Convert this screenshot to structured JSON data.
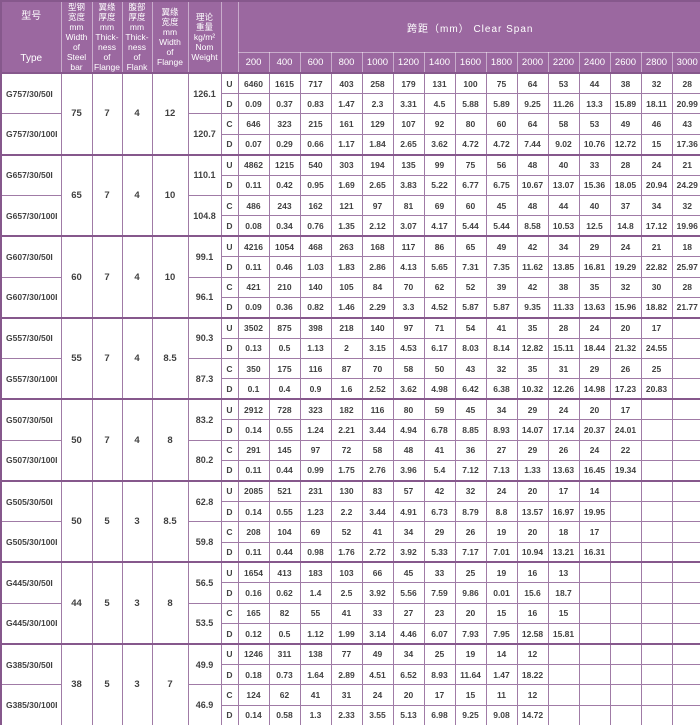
{
  "table": {
    "header": {
      "type_col": "型号\n\nType",
      "spec_cols": [
        {
          "id": "width-of-steel-bar",
          "text": "型钢\n宽度\nmm\nWidth\nof\nSteel\nbar"
        },
        {
          "id": "thickness-of-flange",
          "text": "翼缘\n厚度\nmm\nThick-\nness\nof\nFlange"
        },
        {
          "id": "thickness-of-flank",
          "text": "腹部\n厚度\nmm\nThick-\nness\nof\nFlank"
        },
        {
          "id": "width-of-flange",
          "text": "翼缘\n宽度\nmm\nWidth\nof\nFlange"
        },
        {
          "id": "nom-weight",
          "text": "理论\n重量\nkg/m²\nNom\nWeight"
        }
      ],
      "clear_span_title": "跨距（mm）  Clear Span",
      "spans": [
        "200",
        "400",
        "600",
        "800",
        "1000",
        "1200",
        "1400",
        "1600",
        "1800",
        "2000",
        "2200",
        "2400",
        "2600",
        "2800",
        "3000"
      ]
    },
    "groups": [
      {
        "types": [
          "G757/30/50I",
          "G757/30/100I"
        ],
        "width": "75",
        "flange_thickness": "7",
        "flank_thickness": "4",
        "flange_width": "12",
        "weights": [
          "126.1",
          "120.7"
        ],
        "rows": [
          {
            "label": "U",
            "values": [
              "6460",
              "1615",
              "717",
              "403",
              "258",
              "179",
              "131",
              "100",
              "75",
              "64",
              "53",
              "44",
              "38",
              "32",
              "28"
            ]
          },
          {
            "label": "D",
            "values": [
              "0.09",
              "0.37",
              "0.83",
              "1.47",
              "2.3",
              "3.31",
              "4.5",
              "5.88",
              "5.89",
              "9.25",
              "11.26",
              "13.3",
              "15.89",
              "18.11",
              "20.99"
            ]
          },
          {
            "label": "C",
            "values": [
              "646",
              "323",
              "215",
              "161",
              "129",
              "107",
              "92",
              "80",
              "60",
              "64",
              "58",
              "53",
              "49",
              "46",
              "43"
            ]
          },
          {
            "label": "D",
            "values": [
              "0.07",
              "0.29",
              "0.66",
              "1.17",
              "1.84",
              "2.65",
              "3.62",
              "4.72",
              "4.72",
              "7.44",
              "9.02",
              "10.76",
              "12.72",
              "15",
              "17.36"
            ]
          }
        ]
      },
      {
        "types": [
          "G657/30/50I",
          "G657/30/100I"
        ],
        "width": "65",
        "flange_thickness": "7",
        "flank_thickness": "4",
        "flange_width": "10",
        "weights": [
          "110.1",
          "104.8"
        ],
        "rows": [
          {
            "label": "U",
            "values": [
              "4862",
              "1215",
              "540",
              "303",
              "194",
              "135",
              "99",
              "75",
              "56",
              "48",
              "40",
              "33",
              "28",
              "24",
              "21"
            ]
          },
          {
            "label": "D",
            "values": [
              "0.11",
              "0.42",
              "0.95",
              "1.69",
              "2.65",
              "3.83",
              "5.22",
              "6.77",
              "6.75",
              "10.67",
              "13.07",
              "15.36",
              "18.05",
              "20.94",
              "24.29"
            ]
          },
          {
            "label": "C",
            "values": [
              "486",
              "243",
              "162",
              "121",
              "97",
              "81",
              "69",
              "60",
              "45",
              "48",
              "44",
              "40",
              "37",
              "34",
              "32"
            ]
          },
          {
            "label": "D",
            "values": [
              "0.08",
              "0.34",
              "0.76",
              "1.35",
              "2.12",
              "3.07",
              "4.17",
              "5.44",
              "5.44",
              "8.58",
              "10.53",
              "12.5",
              "14.8",
              "17.12",
              "19.96"
            ]
          }
        ]
      },
      {
        "types": [
          "G607/30/50I",
          "G607/30/100I"
        ],
        "width": "60",
        "flange_thickness": "7",
        "flank_thickness": "4",
        "flange_width": "10",
        "weights": [
          "99.1",
          "96.1"
        ],
        "rows": [
          {
            "label": "U",
            "values": [
              "4216",
              "1054",
              "468",
              "263",
              "168",
              "117",
              "86",
              "65",
              "49",
              "42",
              "34",
              "29",
              "24",
              "21",
              "18"
            ]
          },
          {
            "label": "D",
            "values": [
              "0.11",
              "0.46",
              "1.03",
              "1.83",
              "2.86",
              "4.13",
              "5.65",
              "7.31",
              "7.35",
              "11.62",
              "13.85",
              "16.81",
              "19.29",
              "22.82",
              "25.97"
            ]
          },
          {
            "label": "C",
            "values": [
              "421",
              "210",
              "140",
              "105",
              "84",
              "70",
              "62",
              "52",
              "39",
              "42",
              "38",
              "35",
              "32",
              "30",
              "28"
            ]
          },
          {
            "label": "D",
            "values": [
              "0.09",
              "0.36",
              "0.82",
              "1.46",
              "2.29",
              "3.3",
              "4.52",
              "5.87",
              "5.87",
              "9.35",
              "11.33",
              "13.63",
              "15.96",
              "18.82",
              "21.77"
            ]
          }
        ]
      },
      {
        "types": [
          "G557/30/50I",
          "G557/30/100I"
        ],
        "width": "55",
        "flange_thickness": "7",
        "flank_thickness": "4",
        "flange_width": "8.5",
        "weights": [
          "90.3",
          "87.3"
        ],
        "rows": [
          {
            "label": "U",
            "values": [
              "3502",
              "875",
              "398",
              "218",
              "140",
              "97",
              "71",
              "54",
              "41",
              "35",
              "28",
              "24",
              "20",
              "17",
              ""
            ]
          },
          {
            "label": "D",
            "values": [
              "0.13",
              "0.5",
              "1.13",
              "2",
              "3.15",
              "4.53",
              "6.17",
              "8.03",
              "8.14",
              "12.82",
              "15.11",
              "18.44",
              "21.32",
              "24.55",
              ""
            ]
          },
          {
            "label": "C",
            "values": [
              "350",
              "175",
              "116",
              "87",
              "70",
              "58",
              "50",
              "43",
              "32",
              "35",
              "31",
              "29",
              "26",
              "25",
              ""
            ]
          },
          {
            "label": "D",
            "values": [
              "0.1",
              "0.4",
              "0.9",
              "1.6",
              "2.52",
              "3.62",
              "4.98",
              "6.42",
              "6.38",
              "10.32",
              "12.26",
              "14.98",
              "17.23",
              "20.83",
              ""
            ]
          }
        ]
      },
      {
        "types": [
          "G507/30/50I",
          "G507/30/100I"
        ],
        "width": "50",
        "flange_thickness": "7",
        "flank_thickness": "4",
        "flange_width": "8",
        "weights": [
          "83.2",
          "80.2"
        ],
        "rows": [
          {
            "label": "U",
            "values": [
              "2912",
              "728",
              "323",
              "182",
              "116",
              "80",
              "59",
              "45",
              "34",
              "29",
              "24",
              "20",
              "17",
              "",
              ""
            ]
          },
          {
            "label": "D",
            "values": [
              "0.14",
              "0.55",
              "1.24",
              "2.21",
              "3.44",
              "4.94",
              "6.78",
              "8.85",
              "8.93",
              "14.07",
              "17.14",
              "20.37",
              "24.01",
              "",
              ""
            ]
          },
          {
            "label": "C",
            "values": [
              "291",
              "145",
              "97",
              "72",
              "58",
              "48",
              "41",
              "36",
              "27",
              "29",
              "26",
              "24",
              "22",
              "",
              ""
            ]
          },
          {
            "label": "D",
            "values": [
              "0.11",
              "0.44",
              "0.99",
              "1.75",
              "2.76",
              "3.96",
              "5.4",
              "7.12",
              "7.13",
              "1.33",
              "13.63",
              "16.45",
              "19.34",
              "",
              ""
            ]
          }
        ]
      },
      {
        "types": [
          "G505/30/50I",
          "G505/30/100I"
        ],
        "width": "50",
        "flange_thickness": "5",
        "flank_thickness": "3",
        "flange_width": "8.5",
        "weights": [
          "62.8",
          "59.8"
        ],
        "rows": [
          {
            "label": "U",
            "values": [
              "2085",
              "521",
              "231",
              "130",
              "83",
              "57",
              "42",
              "32",
              "24",
              "20",
              "17",
              "14",
              "",
              "",
              ""
            ]
          },
          {
            "label": "D",
            "values": [
              "0.14",
              "0.55",
              "1.23",
              "2.2",
              "3.44",
              "4.91",
              "6.73",
              "8.79",
              "8.8",
              "13.57",
              "16.97",
              "19.95",
              "",
              "",
              ""
            ]
          },
          {
            "label": "C",
            "values": [
              "208",
              "104",
              "69",
              "52",
              "41",
              "34",
              "29",
              "26",
              "19",
              "20",
              "18",
              "17",
              "",
              "",
              ""
            ]
          },
          {
            "label": "D",
            "values": [
              "0.11",
              "0.44",
              "0.98",
              "1.76",
              "2.72",
              "3.92",
              "5.33",
              "7.17",
              "7.01",
              "10.94",
              "13.21",
              "16.31",
              "",
              "",
              ""
            ]
          }
        ]
      },
      {
        "types": [
          "G445/30/50I",
          "G445/30/100I"
        ],
        "width": "44",
        "flange_thickness": "5",
        "flank_thickness": "3",
        "flange_width": "8",
        "weights": [
          "56.5",
          "53.5"
        ],
        "rows": [
          {
            "label": "U",
            "values": [
              "1654",
              "413",
              "183",
              "103",
              "66",
              "45",
              "33",
              "25",
              "19",
              "16",
              "13",
              "",
              "",
              "",
              ""
            ]
          },
          {
            "label": "D",
            "values": [
              "0.16",
              "0.62",
              "1.4",
              "2.5",
              "3.92",
              "5.56",
              "7.59",
              "9.86",
              "0.01",
              "15.6",
              "18.7",
              "",
              "",
              "",
              ""
            ]
          },
          {
            "label": "C",
            "values": [
              "165",
              "82",
              "55",
              "41",
              "33",
              "27",
              "23",
              "20",
              "15",
              "16",
              "15",
              "",
              "",
              "",
              ""
            ]
          },
          {
            "label": "D",
            "values": [
              "0.12",
              "0.5",
              "1.12",
              "1.99",
              "3.14",
              "4.46",
              "6.07",
              "7.93",
              "7.95",
              "12.58",
              "15.81",
              "",
              "",
              "",
              ""
            ]
          }
        ]
      },
      {
        "types": [
          "G385/30/50I",
          "G385/30/100I"
        ],
        "width": "38",
        "flange_thickness": "5",
        "flank_thickness": "3",
        "flange_width": "7",
        "weights": [
          "49.9",
          "46.9"
        ],
        "rows": [
          {
            "label": "U",
            "values": [
              "1246",
              "311",
              "138",
              "77",
              "49",
              "34",
              "25",
              "19",
              "14",
              "12",
              "",
              "",
              "",
              "",
              ""
            ]
          },
          {
            "label": "D",
            "values": [
              "0.18",
              "0.73",
              "1.64",
              "2.89",
              "4.51",
              "6.52",
              "8.93",
              "11.64",
              "1.47",
              "18.22",
              "",
              "",
              "",
              "",
              ""
            ]
          },
          {
            "label": "C",
            "values": [
              "124",
              "62",
              "41",
              "31",
              "24",
              "20",
              "17",
              "15",
              "11",
              "12",
              "",
              "",
              "",
              "",
              ""
            ]
          },
          {
            "label": "D",
            "values": [
              "0.14",
              "0.58",
              "1.3",
              "2.33",
              "3.55",
              "5.13",
              "6.98",
              "9.25",
              "9.08",
              "14.72",
              "",
              "",
              "",
              "",
              ""
            ]
          }
        ]
      }
    ]
  },
  "colors": {
    "header_bg": "#9b68a0",
    "header_text": "#ffffff",
    "grid_border": "#a07ba6",
    "group_border": "#86588c",
    "body_text": "#414141",
    "background": "#ffffff"
  }
}
